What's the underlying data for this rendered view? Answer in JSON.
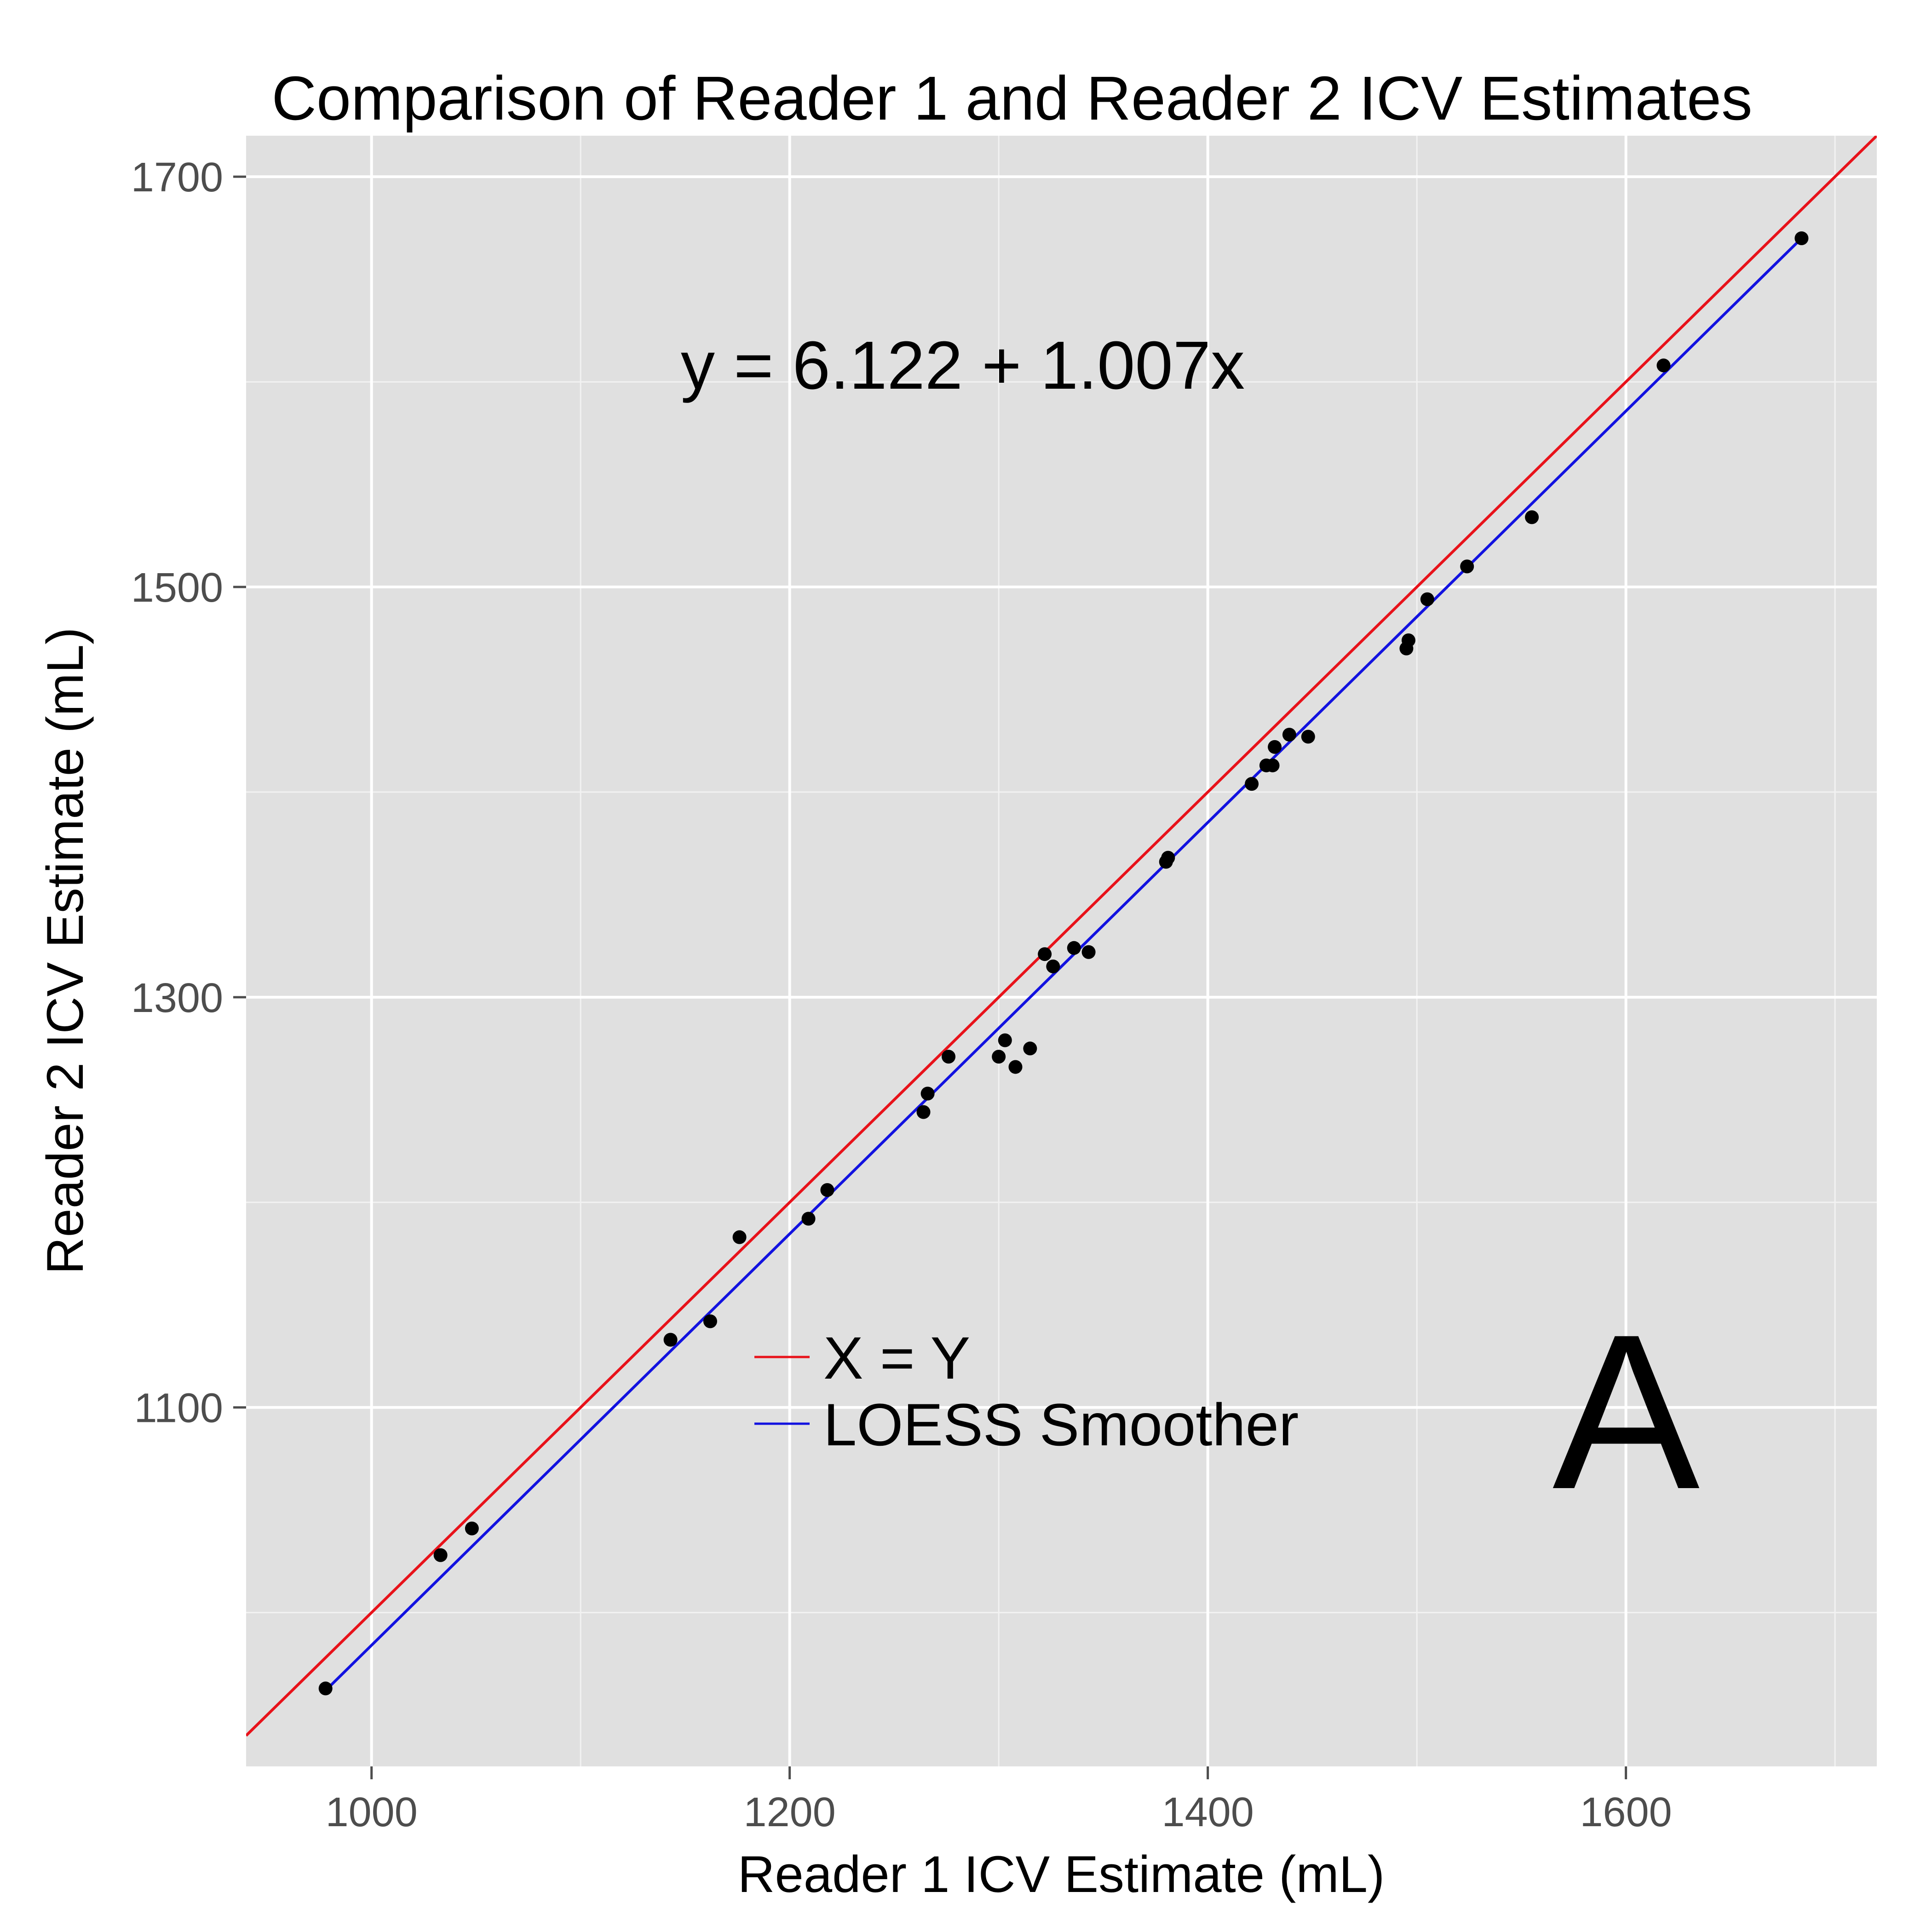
{
  "chart_data": {
    "type": "scatter",
    "title": "Comparison of Reader 1 and Reader 2 ICV Estimates",
    "xlabel": "Reader 1 ICV Estimate (mL)",
    "ylabel": "Reader 2 ICV Estimate (mL)",
    "xlim": [
      940,
      1720
    ],
    "ylim": [
      925,
      1720
    ],
    "xticks": [
      1000,
      1200,
      1400,
      1600
    ],
    "yticks": [
      1100,
      1300,
      1500,
      1700
    ],
    "xtick_labels": [
      "1000",
      "1200",
      "1400",
      "1600"
    ],
    "ytick_labels": [
      "1100",
      "1300",
      "1500",
      "1700"
    ],
    "grid": true,
    "equation": "y = 6.122 + 1.007x",
    "panel_label": "A",
    "legend": {
      "placement": "center-bottom",
      "items": [
        {
          "label": "X = Y",
          "color": "#e8121a"
        },
        {
          "label": "LOESS Smoother",
          "color": "#1212e0"
        }
      ]
    },
    "colors": {
      "panel": "#e0e0e0",
      "grid": "#ffffff",
      "points": "#000000"
    },
    "points": {
      "x": [
        978,
        1033,
        1048,
        1143,
        1162,
        1176,
        1209,
        1218,
        1264,
        1266,
        1276,
        1300,
        1303,
        1308,
        1315,
        1322,
        1326,
        1336,
        1343,
        1380,
        1381,
        1421,
        1428,
        1431,
        1432,
        1439,
        1448,
        1495,
        1496,
        1505,
        1524,
        1555,
        1618,
        1684
      ],
      "y": [
        963,
        1028,
        1041,
        1133,
        1142,
        1183,
        1192,
        1206,
        1244,
        1253,
        1271,
        1271,
        1279,
        1266,
        1275,
        1321,
        1315,
        1324,
        1322,
        1366,
        1368,
        1404,
        1413,
        1413,
        1422,
        1428,
        1427,
        1470,
        1474,
        1494,
        1510,
        1534,
        1608,
        1670
      ]
    },
    "series": [
      {
        "name": "X = Y",
        "type": "line",
        "x": [
          940,
          1720
        ],
        "y": [
          940,
          1720
        ]
      },
      {
        "name": "LOESS Smoother",
        "type": "line",
        "x": [
          978,
          1684
        ],
        "y": [
          962,
          1670
        ]
      }
    ]
  }
}
